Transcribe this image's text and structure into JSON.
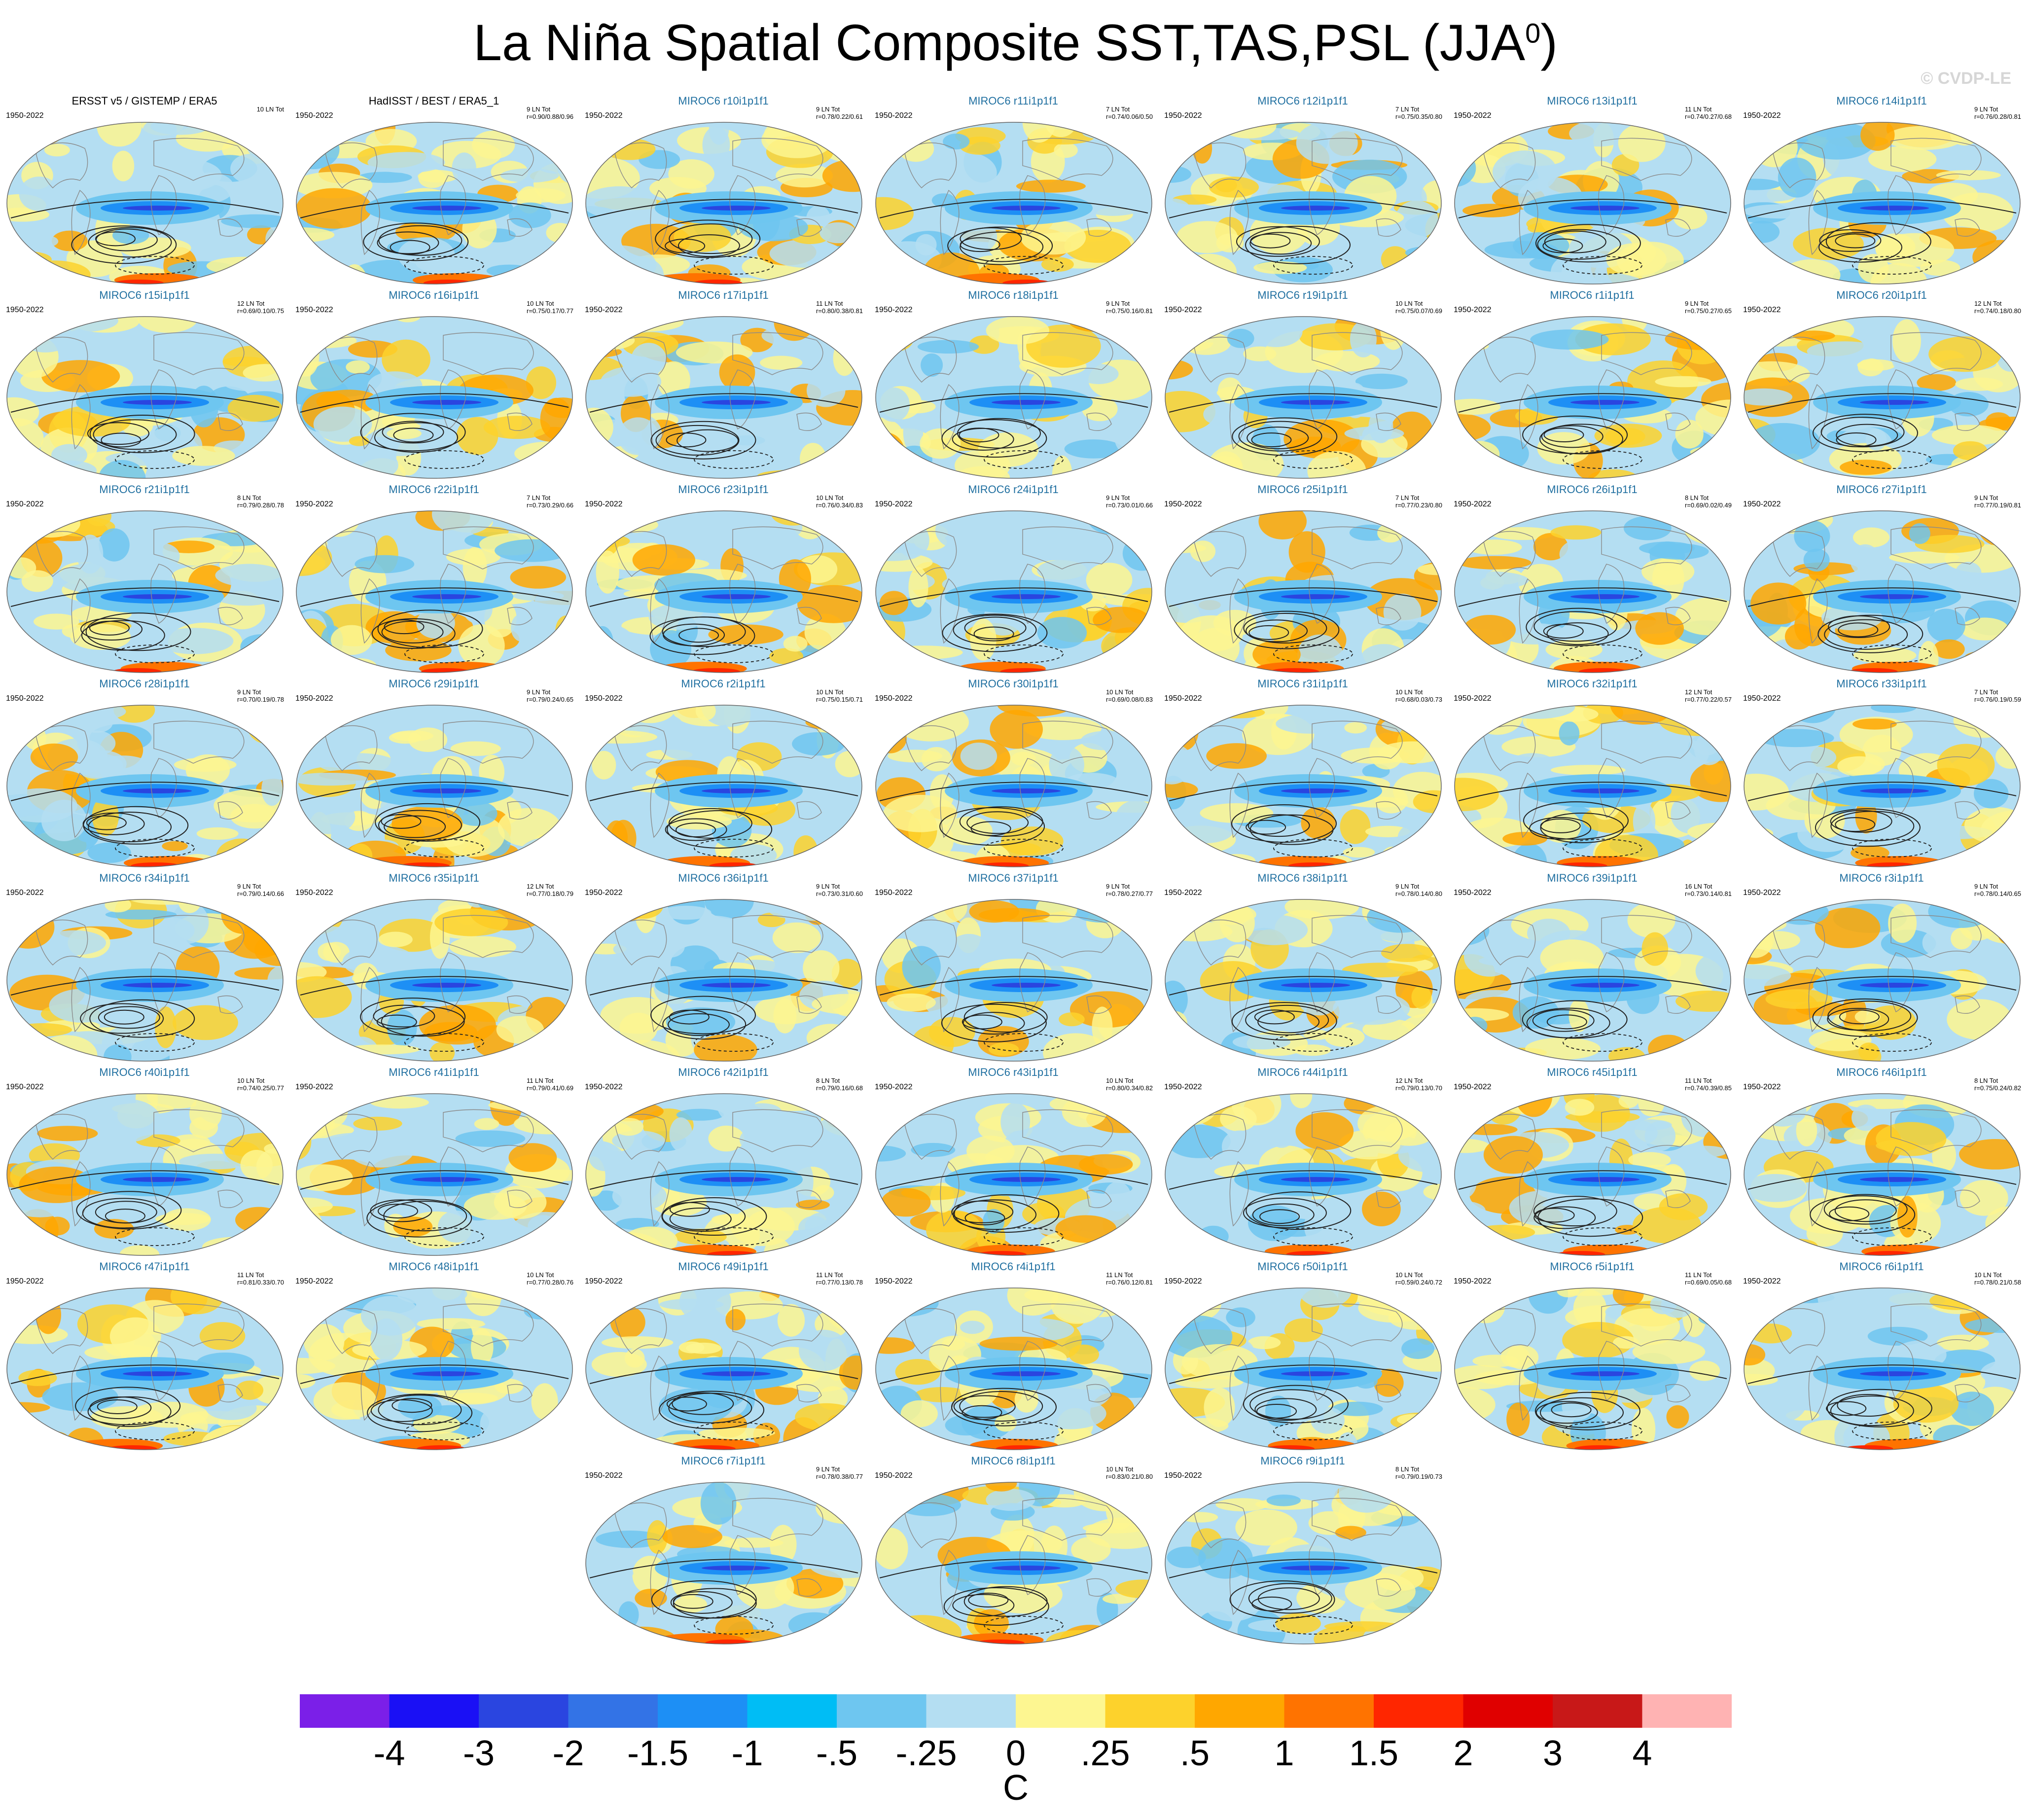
{
  "title": "La Niña Spatial Composite SST,TAS,PSL (JJA",
  "title_sup": "0",
  "title_close": ")",
  "watermark": "© CVDP-LE",
  "chart_data": {
    "type": "heatmap",
    "title": "La Niña Spatial Composite SST,TAS,PSL (JJA0)",
    "units": "C",
    "colorbar": {
      "ticks": [
        "-4",
        "-3",
        "-2",
        "-1.5",
        "-1",
        "-.5",
        "-.25",
        "0",
        ".25",
        ".5",
        "1",
        "1.5",
        "2",
        "3",
        "4"
      ],
      "colors": [
        "#7b1fe8",
        "#1a10f5",
        "#2a45e0",
        "#3373e6",
        "#1d8ff5",
        "#00bdf5",
        "#6ec6f0",
        "#b4def2",
        "#fdf691",
        "#fdd22c",
        "#ffa700",
        "#ff7300",
        "#ff2600",
        "#e00000",
        "#c81818",
        "#ffb3b3"
      ]
    },
    "panels": [
      {
        "title": "ERSST v5 / GISTEMP / ERA5",
        "years": "1950-2022",
        "count": "10 LN Tot",
        "r": ""
      },
      {
        "title": "HadISST / BEST / ERA5_1",
        "years": "1950-2022",
        "count": "9 LN Tot",
        "r": "r=0.90/0.88/0.96"
      },
      {
        "title": "MIROC6 r10i1p1f1",
        "years": "1950-2022",
        "count": "9 LN Tot",
        "r": "r=0.78/0.22/0.61"
      },
      {
        "title": "MIROC6 r11i1p1f1",
        "years": "1950-2022",
        "count": "7 LN Tot",
        "r": "r=0.74/0.06/0.50"
      },
      {
        "title": "MIROC6 r12i1p1f1",
        "years": "1950-2022",
        "count": "7 LN Tot",
        "r": "r=0.75/0.35/0.80"
      },
      {
        "title": "MIROC6 r13i1p1f1",
        "years": "1950-2022",
        "count": "11 LN Tot",
        "r": "r=0.74/0.27/0.68"
      },
      {
        "title": "MIROC6 r14i1p1f1",
        "years": "1950-2022",
        "count": "9 LN Tot",
        "r": "r=0.76/0.28/0.81"
      },
      {
        "title": "MIROC6 r15i1p1f1",
        "years": "1950-2022",
        "count": "12 LN Tot",
        "r": "r=0.69/0.10/0.75"
      },
      {
        "title": "MIROC6 r16i1p1f1",
        "years": "1950-2022",
        "count": "10 LN Tot",
        "r": "r=0.75/0.17/0.77"
      },
      {
        "title": "MIROC6 r17i1p1f1",
        "years": "1950-2022",
        "count": "11 LN Tot",
        "r": "r=0.80/0.38/0.81"
      },
      {
        "title": "MIROC6 r18i1p1f1",
        "years": "1950-2022",
        "count": "9 LN Tot",
        "r": "r=0.75/0.16/0.81"
      },
      {
        "title": "MIROC6 r19i1p1f1",
        "years": "1950-2022",
        "count": "10 LN Tot",
        "r": "r=0.75/0.07/0.69"
      },
      {
        "title": "MIROC6 r1i1p1f1",
        "years": "1950-2022",
        "count": "9 LN Tot",
        "r": "r=0.75/0.27/0.65"
      },
      {
        "title": "MIROC6 r20i1p1f1",
        "years": "1950-2022",
        "count": "12 LN Tot",
        "r": "r=0.74/0.18/0.80"
      },
      {
        "title": "MIROC6 r21i1p1f1",
        "years": "1950-2022",
        "count": "8 LN Tot",
        "r": "r=0.79/0.28/0.78"
      },
      {
        "title": "MIROC6 r22i1p1f1",
        "years": "1950-2022",
        "count": "7 LN Tot",
        "r": "r=0.73/0.29/0.66"
      },
      {
        "title": "MIROC6 r23i1p1f1",
        "years": "1950-2022",
        "count": "10 LN Tot",
        "r": "r=0.76/0.34/0.83"
      },
      {
        "title": "MIROC6 r24i1p1f1",
        "years": "1950-2022",
        "count": "9 LN Tot",
        "r": "r=0.73/0.01/0.66"
      },
      {
        "title": "MIROC6 r25i1p1f1",
        "years": "1950-2022",
        "count": "7 LN Tot",
        "r": "r=0.77/0.23/0.80"
      },
      {
        "title": "MIROC6 r26i1p1f1",
        "years": "1950-2022",
        "count": "8 LN Tot",
        "r": "r=0.69/0.02/0.49"
      },
      {
        "title": "MIROC6 r27i1p1f1",
        "years": "1950-2022",
        "count": "9 LN Tot",
        "r": "r=0.77/0.19/0.81"
      },
      {
        "title": "MIROC6 r28i1p1f1",
        "years": "1950-2022",
        "count": "9 LN Tot",
        "r": "r=0.70/0.19/0.78"
      },
      {
        "title": "MIROC6 r29i1p1f1",
        "years": "1950-2022",
        "count": "9 LN Tot",
        "r": "r=0.79/0.24/0.65"
      },
      {
        "title": "MIROC6 r2i1p1f1",
        "years": "1950-2022",
        "count": "10 LN Tot",
        "r": "r=0.75/0.15/0.71"
      },
      {
        "title": "MIROC6 r30i1p1f1",
        "years": "1950-2022",
        "count": "10 LN Tot",
        "r": "r=0.69/0.08/0.83"
      },
      {
        "title": "MIROC6 r31i1p1f1",
        "years": "1950-2022",
        "count": "10 LN Tot",
        "r": "r=0.68/0.03/0.73"
      },
      {
        "title": "MIROC6 r32i1p1f1",
        "years": "1950-2022",
        "count": "12 LN Tot",
        "r": "r=0.77/0.22/0.57"
      },
      {
        "title": "MIROC6 r33i1p1f1",
        "years": "1950-2022",
        "count": "7 LN Tot",
        "r": "r=0.76/0.19/0.59"
      },
      {
        "title": "MIROC6 r34i1p1f1",
        "years": "1950-2022",
        "count": "9 LN Tot",
        "r": "r=0.79/0.14/0.66"
      },
      {
        "title": "MIROC6 r35i1p1f1",
        "years": "1950-2022",
        "count": "12 LN Tot",
        "r": "r=0.77/0.18/0.79"
      },
      {
        "title": "MIROC6 r36i1p1f1",
        "years": "1950-2022",
        "count": "9 LN Tot",
        "r": "r=0.73/0.31/0.60"
      },
      {
        "title": "MIROC6 r37i1p1f1",
        "years": "1950-2022",
        "count": "9 LN Tot",
        "r": "r=0.78/0.27/0.77"
      },
      {
        "title": "MIROC6 r38i1p1f1",
        "years": "1950-2022",
        "count": "9 LN Tot",
        "r": "r=0.78/0.14/0.80"
      },
      {
        "title": "MIROC6 r39i1p1f1",
        "years": "1950-2022",
        "count": "16 LN Tot",
        "r": "r=0.73/0.14/0.81"
      },
      {
        "title": "MIROC6 r3i1p1f1",
        "years": "1950-2022",
        "count": "9 LN Tot",
        "r": "r=0.78/0.14/0.65"
      },
      {
        "title": "MIROC6 r40i1p1f1",
        "years": "1950-2022",
        "count": "10 LN Tot",
        "r": "r=0.74/0.25/0.77"
      },
      {
        "title": "MIROC6 r41i1p1f1",
        "years": "1950-2022",
        "count": "11 LN Tot",
        "r": "r=0.79/0.41/0.69"
      },
      {
        "title": "MIROC6 r42i1p1f1",
        "years": "1950-2022",
        "count": "8 LN Tot",
        "r": "r=0.79/0.16/0.68"
      },
      {
        "title": "MIROC6 r43i1p1f1",
        "years": "1950-2022",
        "count": "10 LN Tot",
        "r": "r=0.80/0.34/0.82"
      },
      {
        "title": "MIROC6 r44i1p1f1",
        "years": "1950-2022",
        "count": "12 LN Tot",
        "r": "r=0.79/0.13/0.70"
      },
      {
        "title": "MIROC6 r45i1p1f1",
        "years": "1950-2022",
        "count": "11 LN Tot",
        "r": "r=0.74/0.39/0.85"
      },
      {
        "title": "MIROC6 r46i1p1f1",
        "years": "1950-2022",
        "count": "8 LN Tot",
        "r": "r=0.75/0.24/0.82"
      },
      {
        "title": "MIROC6 r47i1p1f1",
        "years": "1950-2022",
        "count": "11 LN Tot",
        "r": "r=0.81/0.33/0.70"
      },
      {
        "title": "MIROC6 r48i1p1f1",
        "years": "1950-2022",
        "count": "10 LN Tot",
        "r": "r=0.77/0.28/0.76"
      },
      {
        "title": "MIROC6 r49i1p1f1",
        "years": "1950-2022",
        "count": "11 LN Tot",
        "r": "r=0.77/0.13/0.78"
      },
      {
        "title": "MIROC6 r4i1p1f1",
        "years": "1950-2022",
        "count": "11 LN Tot",
        "r": "r=0.76/0.12/0.81"
      },
      {
        "title": "MIROC6 r50i1p1f1",
        "years": "1950-2022",
        "count": "10 LN Tot",
        "r": "r=0.59/0.24/0.72"
      },
      {
        "title": "MIROC6 r5i1p1f1",
        "years": "1950-2022",
        "count": "11 LN Tot",
        "r": "r=0.69/0.05/0.68"
      },
      {
        "title": "MIROC6 r6i1p1f1",
        "years": "1950-2022",
        "count": "10 LN Tot",
        "r": "r=0.78/0.21/0.58"
      },
      {
        "title": "MIROC6 r7i1p1f1",
        "years": "1950-2022",
        "count": "9 LN Tot",
        "r": "r=0.78/0.38/0.77"
      },
      {
        "title": "MIROC6 r8i1p1f1",
        "years": "1950-2022",
        "count": "10 LN Tot",
        "r": "r=0.83/0.21/0.80"
      },
      {
        "title": "MIROC6 r9i1p1f1",
        "years": "1950-2022",
        "count": "8 LN Tot",
        "r": "r=0.79/0.19/0.73"
      }
    ]
  }
}
